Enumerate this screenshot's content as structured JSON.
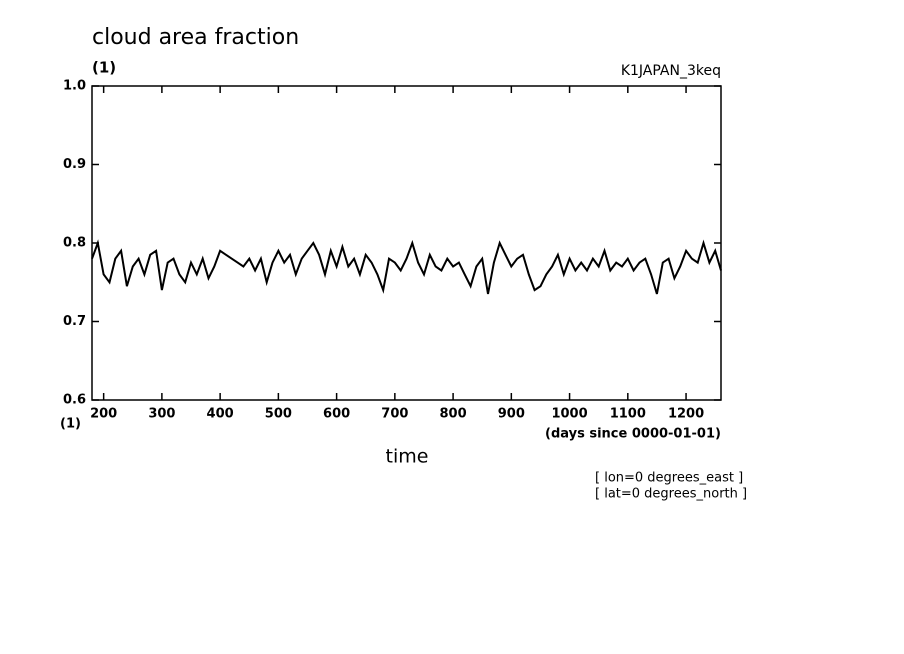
{
  "chart_data": {
    "type": "line",
    "title": "cloud area fraction",
    "y_unit": "(1)",
    "run_name": "K1JAPAN_3keq",
    "x_unit_left": "(1)",
    "x_unit": "(days since 0000-01-01)",
    "xlabel": "time",
    "notes": [
      "[ lon=0 degrees_east ]",
      "[ lat=0 degrees_north ]"
    ],
    "xlim": [
      180,
      1260
    ],
    "xticks": [
      200,
      300,
      400,
      500,
      600,
      700,
      800,
      900,
      1000,
      1100,
      1200
    ],
    "ylim": [
      0.6,
      1
    ],
    "yticks": [
      {
        "value": 0.6,
        "label": "0.6"
      },
      {
        "value": 0.7,
        "label": "0.7"
      },
      {
        "value": 0.8,
        "label": "0.8"
      },
      {
        "value": 0.9,
        "label": "0.9"
      },
      {
        "value": 1,
        "label": "1.0"
      }
    ],
    "color": "#000000",
    "x": [
      180,
      190,
      200,
      210,
      220,
      230,
      240,
      250,
      260,
      270,
      280,
      290,
      300,
      310,
      320,
      330,
      340,
      350,
      360,
      370,
      380,
      390,
      400,
      410,
      420,
      430,
      440,
      450,
      460,
      470,
      480,
      490,
      500,
      510,
      520,
      530,
      540,
      550,
      560,
      570,
      580,
      590,
      600,
      610,
      620,
      630,
      640,
      650,
      660,
      670,
      680,
      690,
      700,
      710,
      720,
      730,
      740,
      750,
      760,
      770,
      780,
      790,
      800,
      810,
      820,
      830,
      840,
      850,
      860,
      870,
      880,
      890,
      900,
      910,
      920,
      930,
      940,
      950,
      960,
      970,
      980,
      990,
      1000,
      1010,
      1020,
      1030,
      1040,
      1050,
      1060,
      1070,
      1080,
      1090,
      1100,
      1110,
      1120,
      1130,
      1140,
      1150,
      1160,
      1170,
      1180,
      1190,
      1200,
      1210,
      1220,
      1230,
      1240,
      1250,
      1260
    ],
    "values": [
      0.78,
      0.8,
      0.76,
      0.75,
      0.78,
      0.79,
      0.745,
      0.77,
      0.78,
      0.76,
      0.785,
      0.79,
      0.74,
      0.775,
      0.78,
      0.76,
      0.75,
      0.775,
      0.76,
      0.78,
      0.755,
      0.77,
      0.79,
      0.785,
      0.78,
      0.775,
      0.77,
      0.78,
      0.765,
      0.78,
      0.75,
      0.775,
      0.79,
      0.775,
      0.785,
      0.76,
      0.78,
      0.79,
      0.8,
      0.785,
      0.76,
      0.79,
      0.77,
      0.795,
      0.77,
      0.78,
      0.76,
      0.785,
      0.775,
      0.76,
      0.74,
      0.78,
      0.775,
      0.765,
      0.78,
      0.8,
      0.775,
      0.76,
      0.785,
      0.77,
      0.765,
      0.78,
      0.77,
      0.775,
      0.76,
      0.745,
      0.77,
      0.78,
      0.735,
      0.775,
      0.8,
      0.785,
      0.77,
      0.78,
      0.785,
      0.76,
      0.74,
      0.745,
      0.76,
      0.77,
      0.785,
      0.76,
      0.78,
      0.765,
      0.775,
      0.765,
      0.78,
      0.77,
      0.79,
      0.765,
      0.775,
      0.77,
      0.78,
      0.765,
      0.775,
      0.78,
      0.76,
      0.735,
      0.775,
      0.78,
      0.755,
      0.77,
      0.79,
      0.78,
      0.775,
      0.8,
      0.775,
      0.79,
      0.765
    ]
  }
}
